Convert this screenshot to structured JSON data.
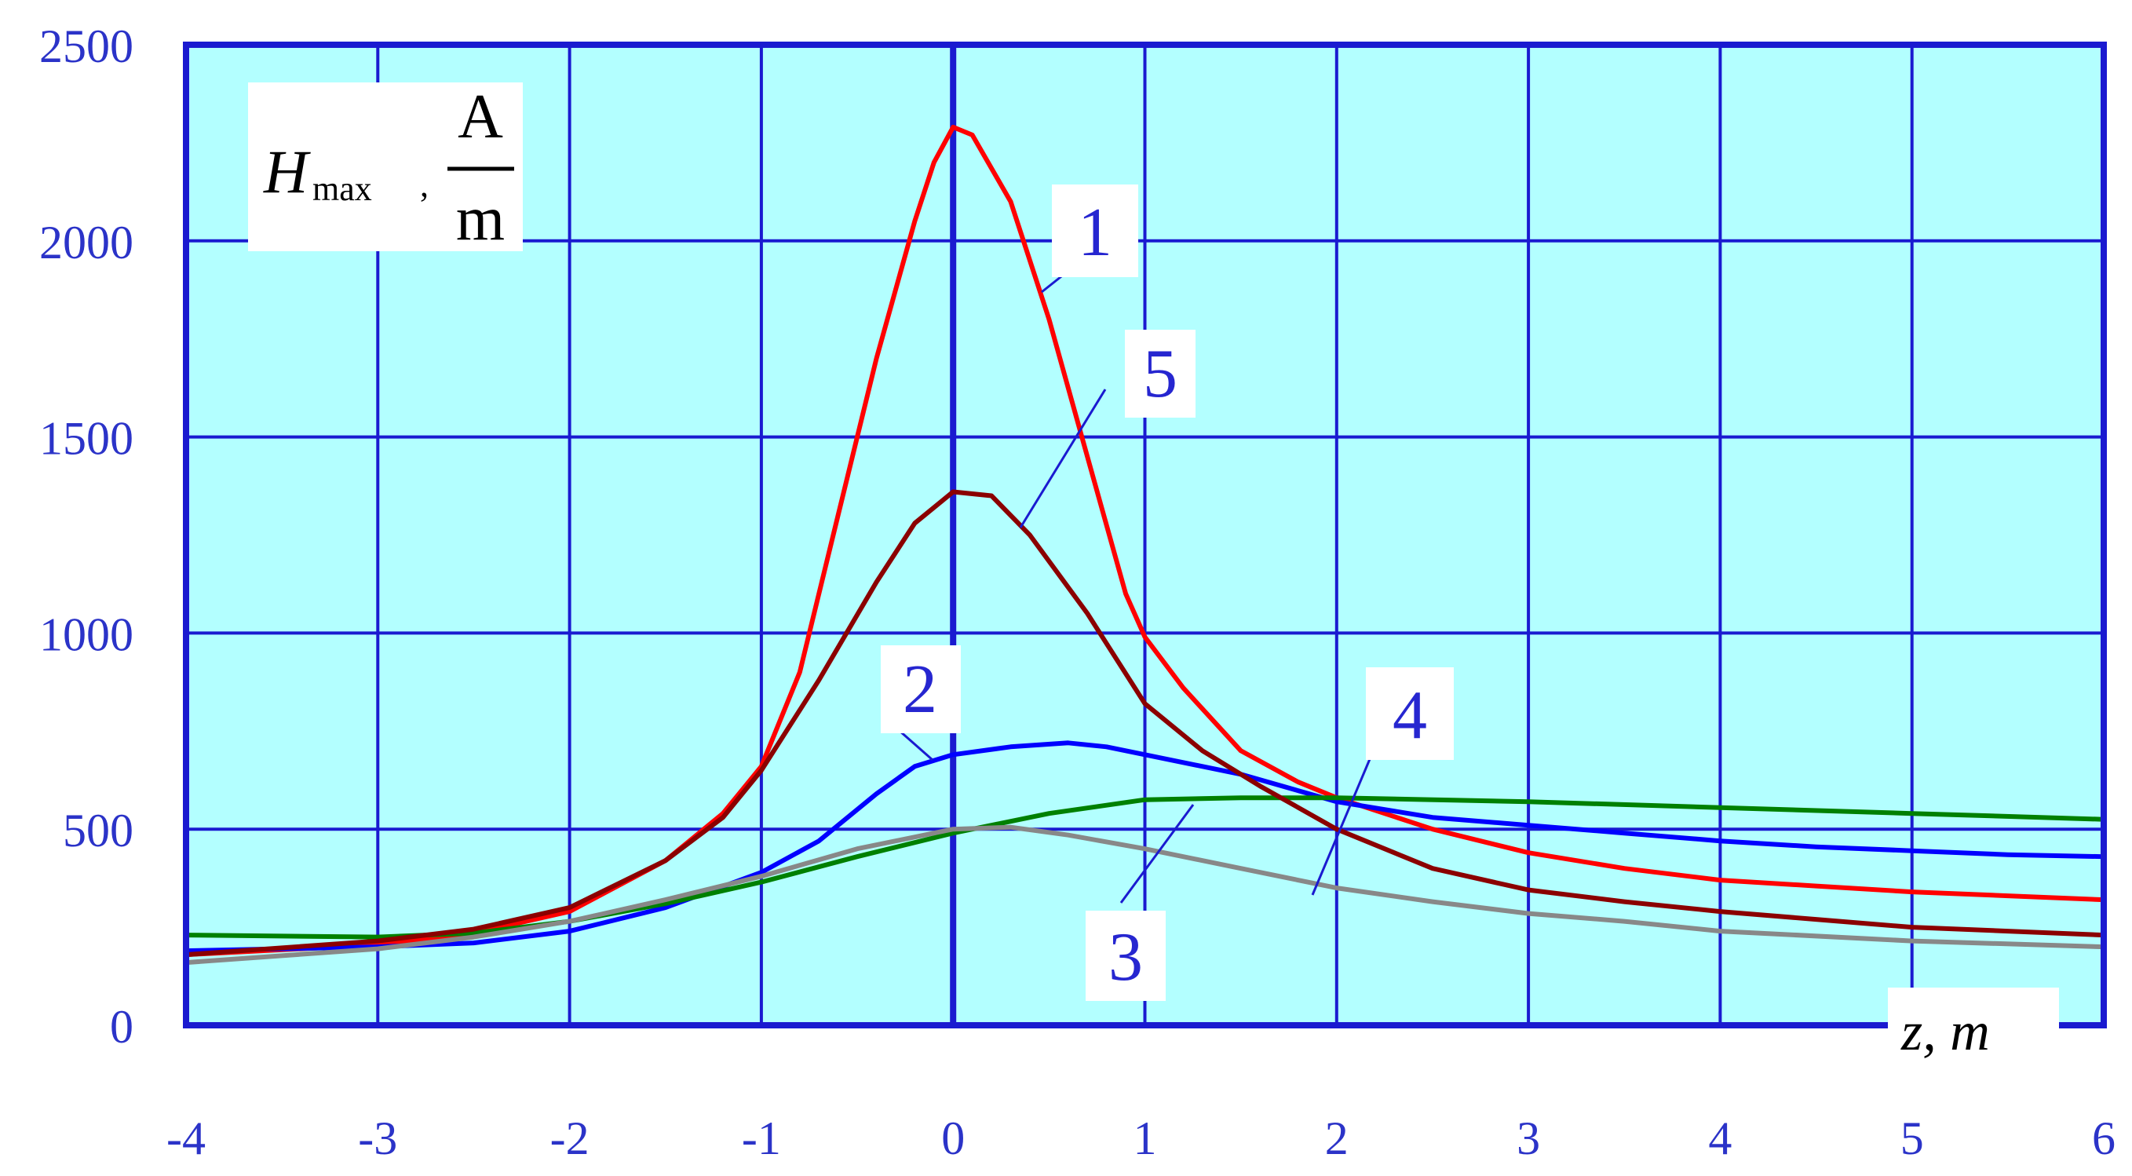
{
  "chart_data": {
    "type": "line",
    "ylabel": {
      "symbol": "H",
      "subscript": "max",
      "separator": ",",
      "unit_numerator": "A",
      "unit_denominator": "m"
    },
    "xlabel": "z, m",
    "xlim": [
      -4,
      6
    ],
    "ylim": [
      0,
      2500
    ],
    "xticks": [
      "-4",
      "-3",
      "-2",
      "-1",
      "0",
      "1",
      "2",
      "3",
      "4",
      "5",
      "6"
    ],
    "yticks": [
      "0",
      "500",
      "1000",
      "1500",
      "2000",
      "2500"
    ],
    "grid": true,
    "background": "#b3ffff",
    "grid_color": "#1a1ad0",
    "series": [
      {
        "label": "1",
        "color": "#ff0000",
        "points": [
          [
            -4,
            180
          ],
          [
            -3,
            205
          ],
          [
            -2.5,
            235
          ],
          [
            -2,
            290
          ],
          [
            -1.5,
            420
          ],
          [
            -1.2,
            540
          ],
          [
            -1,
            660
          ],
          [
            -0.8,
            900
          ],
          [
            -0.6,
            1300
          ],
          [
            -0.4,
            1700
          ],
          [
            -0.2,
            2050
          ],
          [
            -0.1,
            2200
          ],
          [
            0,
            2290
          ],
          [
            0.1,
            2270
          ],
          [
            0.3,
            2100
          ],
          [
            0.5,
            1800
          ],
          [
            0.7,
            1450
          ],
          [
            0.9,
            1100
          ],
          [
            1,
            990
          ],
          [
            1.2,
            860
          ],
          [
            1.5,
            700
          ],
          [
            1.8,
            620
          ],
          [
            2,
            580
          ],
          [
            2.5,
            500
          ],
          [
            3,
            440
          ],
          [
            3.5,
            400
          ],
          [
            4,
            370
          ],
          [
            4.5,
            355
          ],
          [
            5,
            340
          ],
          [
            5.5,
            330
          ],
          [
            6,
            320
          ]
        ]
      },
      {
        "label": "2",
        "color": "#0000ff",
        "points": [
          [
            -4,
            190
          ],
          [
            -3,
            200
          ],
          [
            -2.5,
            210
          ],
          [
            -2,
            240
          ],
          [
            -1.5,
            300
          ],
          [
            -1,
            390
          ],
          [
            -0.7,
            470
          ],
          [
            -0.4,
            590
          ],
          [
            -0.2,
            660
          ],
          [
            0,
            690
          ],
          [
            0.3,
            710
          ],
          [
            0.6,
            720
          ],
          [
            0.8,
            710
          ],
          [
            1,
            690
          ],
          [
            1.5,
            640
          ],
          [
            2,
            570
          ],
          [
            2.5,
            530
          ],
          [
            3,
            510
          ],
          [
            3.5,
            490
          ],
          [
            4,
            470
          ],
          [
            4.5,
            455
          ],
          [
            5,
            445
          ],
          [
            5.5,
            435
          ],
          [
            6,
            430
          ]
        ]
      },
      {
        "label": "3",
        "color": "#008000",
        "points": [
          [
            -4,
            230
          ],
          [
            -3,
            225
          ],
          [
            -2.5,
            235
          ],
          [
            -2,
            265
          ],
          [
            -1.5,
            310
          ],
          [
            -1,
            365
          ],
          [
            -0.5,
            430
          ],
          [
            0,
            490
          ],
          [
            0.5,
            540
          ],
          [
            1,
            575
          ],
          [
            1.5,
            580
          ],
          [
            2,
            580
          ],
          [
            3,
            570
          ],
          [
            4,
            555
          ],
          [
            5,
            540
          ],
          [
            6,
            525
          ]
        ]
      },
      {
        "label": "4",
        "color": "#888888",
        "points": [
          [
            -4,
            160
          ],
          [
            -3,
            195
          ],
          [
            -2.5,
            225
          ],
          [
            -2,
            265
          ],
          [
            -1.5,
            320
          ],
          [
            -1,
            380
          ],
          [
            -0.5,
            450
          ],
          [
            0,
            500
          ],
          [
            0.3,
            505
          ],
          [
            0.6,
            485
          ],
          [
            1,
            450
          ],
          [
            1.5,
            400
          ],
          [
            2,
            350
          ],
          [
            2.5,
            315
          ],
          [
            3,
            285
          ],
          [
            3.5,
            265
          ],
          [
            4,
            240
          ],
          [
            5,
            215
          ],
          [
            6,
            200
          ]
        ]
      },
      {
        "label": "5",
        "color": "#8b0000",
        "points": [
          [
            -4,
            180
          ],
          [
            -3,
            215
          ],
          [
            -2.5,
            245
          ],
          [
            -2,
            300
          ],
          [
            -1.5,
            420
          ],
          [
            -1.2,
            530
          ],
          [
            -1,
            650
          ],
          [
            -0.7,
            880
          ],
          [
            -0.4,
            1130
          ],
          [
            -0.2,
            1280
          ],
          [
            0,
            1360
          ],
          [
            0.2,
            1350
          ],
          [
            0.4,
            1250
          ],
          [
            0.7,
            1050
          ],
          [
            1,
            820
          ],
          [
            1.3,
            700
          ],
          [
            1.6,
            610
          ],
          [
            2,
            500
          ],
          [
            2.5,
            400
          ],
          [
            3,
            345
          ],
          [
            3.5,
            315
          ],
          [
            4,
            290
          ],
          [
            4.5,
            270
          ],
          [
            5,
            250
          ],
          [
            5.5,
            240
          ],
          [
            6,
            230
          ]
        ]
      }
    ],
    "annotations": [
      {
        "label": "1"
      },
      {
        "label": "5"
      },
      {
        "label": "2"
      },
      {
        "label": "4"
      },
      {
        "label": "3"
      }
    ]
  }
}
